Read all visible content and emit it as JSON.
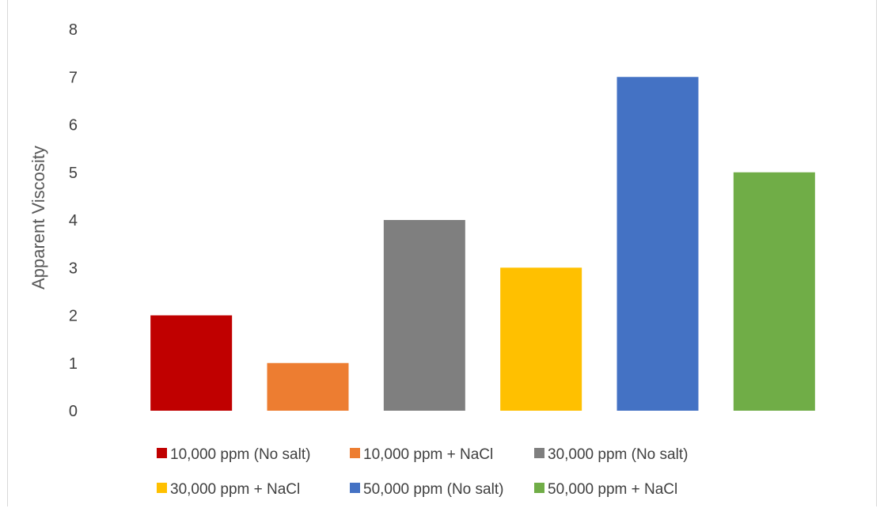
{
  "chart_data": {
    "type": "bar",
    "title": "",
    "xlabel": "",
    "ylabel": "Apparent Viscosity",
    "ylim": [
      0,
      8
    ],
    "yticks": [
      0,
      1,
      2,
      3,
      4,
      5,
      6,
      7,
      8
    ],
    "grid": false,
    "legend_position": "bottom",
    "series": [
      {
        "name": "10,000 ppm (No salt)",
        "value": 2,
        "color": "#C00000"
      },
      {
        "name": "10,000 ppm + NaCl",
        "value": 1,
        "color": "#ED7D31"
      },
      {
        "name": "30,000 ppm (No salt)",
        "value": 4,
        "color": "#7F7F7F"
      },
      {
        "name": "30,000 ppm + NaCl",
        "value": 3,
        "color": "#FFC000"
      },
      {
        "name": "50,000 ppm (No salt)",
        "value": 7,
        "color": "#4472C4"
      },
      {
        "name": "50,000 ppm + NaCl",
        "value": 5,
        "color": "#70AD47"
      }
    ]
  }
}
